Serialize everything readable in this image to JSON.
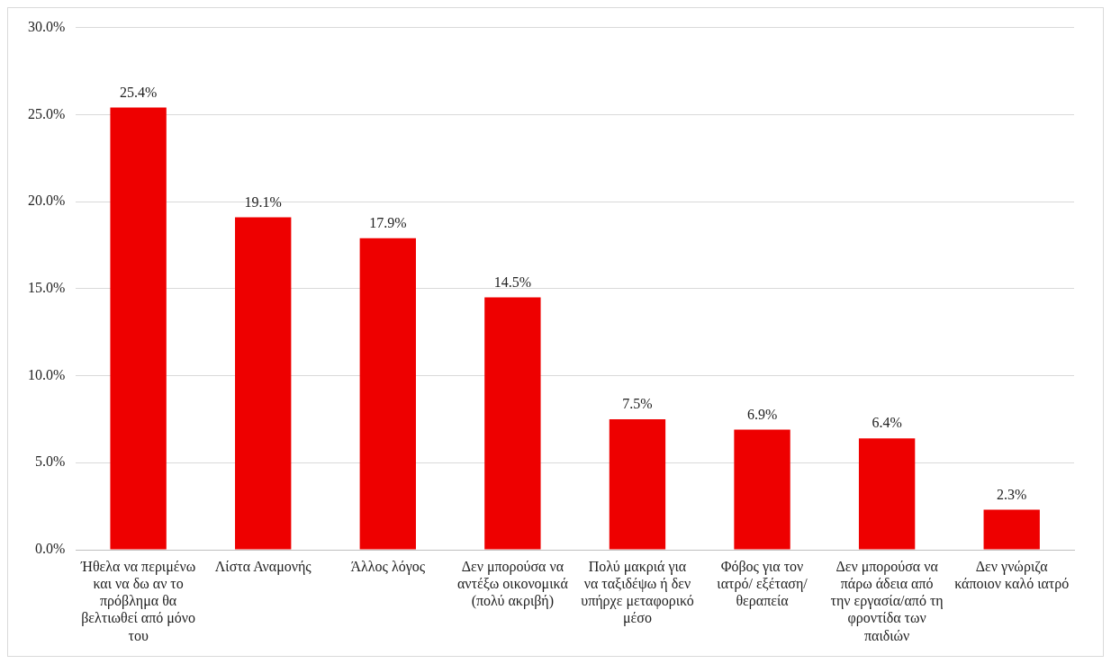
{
  "chart_data": {
    "type": "bar",
    "categories": [
      "Ήθελα να περιμένω και να δω αν το πρόβλημα θα βελτιωθεί από μόνο του",
      "Λίστα Αναμονής",
      "Άλλος λόγος",
      "Δεν μπορούσα να αντέξω οικονομικά (πολύ ακριβή)",
      "Πολύ μακριά για να ταξιδέψω ή δεν υπήρχε μεταφορικό μέσο",
      "Φόβος για τον ιατρό/ εξέταση/ θεραπεία",
      "Δεν μπορούσα να πάρω άδεια από την εργασία/από τη φροντίδα των παιδιών",
      "Δεν γνώριζα κάποιον καλό ιατρό"
    ],
    "values": [
      25.4,
      19.1,
      17.9,
      14.5,
      7.5,
      6.9,
      6.4,
      2.3
    ],
    "value_labels": [
      "25.4%",
      "19.1%",
      "17.9%",
      "14.5%",
      "7.5%",
      "6.9%",
      "6.4%",
      "2.3%"
    ],
    "color": "#ee0000",
    "ylim": [
      0,
      30
    ],
    "yticks": [
      {
        "value": 0,
        "label": "0.0%"
      },
      {
        "value": 5,
        "label": "5.0%"
      },
      {
        "value": 10,
        "label": "10.0%"
      },
      {
        "value": 15,
        "label": "15.0%"
      },
      {
        "value": 20,
        "label": "20.0%"
      },
      {
        "value": 25,
        "label": "25.0%"
      },
      {
        "value": 30,
        "label": "30.0%"
      }
    ],
    "grid": "y"
  }
}
